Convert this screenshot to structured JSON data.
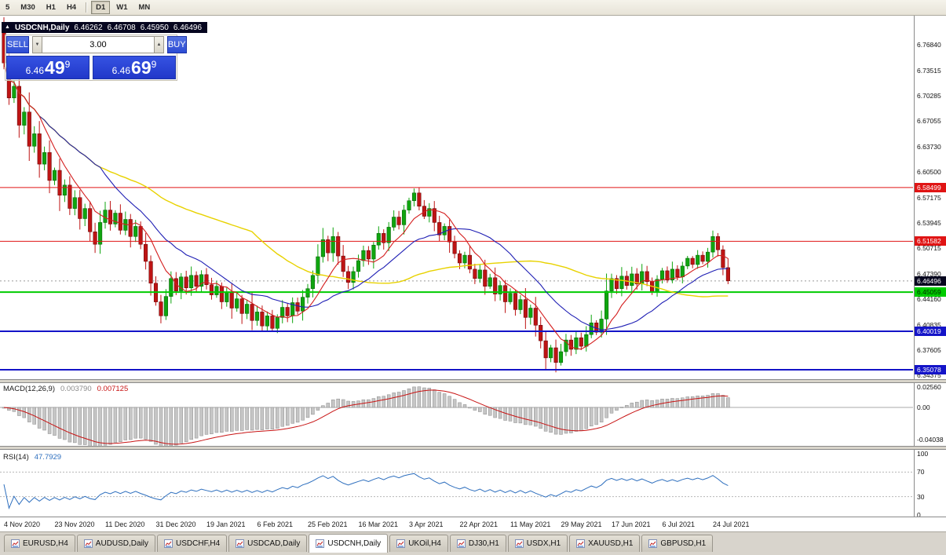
{
  "toolbar": {
    "timeframes": [
      "5",
      "M30",
      "H1",
      "H4",
      "D1",
      "W1",
      "MN"
    ],
    "active": "D1",
    "separator_before": "D1"
  },
  "symbol_header": {
    "collapse_icon": "▲",
    "title": "USDCNH,Daily",
    "open": "6.46262",
    "high": "6.46708",
    "low": "6.45950",
    "close": "6.46496"
  },
  "one_click": {
    "sell_label": "SELL",
    "buy_label": "BUY",
    "volume": "3.00",
    "spin_down_icon": "▼",
    "spin_up_icon": "▲",
    "bid": {
      "prefix": "6.46",
      "main": "49",
      "sup": "9"
    },
    "ask": {
      "prefix": "6.46",
      "main": "69",
      "sup": "9"
    }
  },
  "tabs": {
    "labels": [
      "EURUSD,H4",
      "AUDUSD,Daily",
      "USDCHF,H4",
      "USDCAD,Daily",
      "USDCNH,Daily",
      "UKOil,H4",
      "DJ30,H1",
      "USDX,H1",
      "XAUUSD,H1",
      "GBPUSD,H1"
    ],
    "active_index": 4
  },
  "chart_data": {
    "type": "candlestick",
    "symbol": "USDCNH",
    "timeframe": "Daily",
    "ohlc_display": {
      "open": 6.46262,
      "high": 6.46708,
      "low": 6.4595,
      "close": 6.46496
    },
    "current_price": 6.46496,
    "first_open": 6.792,
    "closes": [
      6.745,
      6.7,
      6.715,
      6.665,
      6.682,
      6.638,
      6.654,
      6.615,
      6.63,
      6.594,
      6.607,
      6.575,
      6.588,
      6.558,
      6.572,
      6.545,
      6.558,
      6.528,
      6.512,
      6.54,
      6.556,
      6.538,
      6.552,
      6.53,
      6.544,
      6.522,
      6.535,
      6.512,
      6.49,
      6.462,
      6.438,
      6.42,
      6.445,
      6.468,
      6.452,
      6.47,
      6.456,
      6.472,
      6.458,
      6.473,
      6.46,
      6.447,
      6.458,
      6.438,
      6.45,
      6.43,
      6.442,
      6.423,
      6.435,
      6.414,
      6.425,
      6.407,
      6.42,
      6.404,
      6.418,
      6.431,
      6.42,
      6.437,
      6.426,
      6.444,
      6.455,
      6.472,
      6.496,
      6.518,
      6.501,
      6.522,
      6.497,
      6.477,
      6.463,
      6.477,
      6.491,
      6.504,
      6.493,
      6.511,
      6.526,
      6.514,
      6.534,
      6.547,
      6.537,
      6.556,
      6.568,
      6.578,
      6.561,
      6.548,
      6.558,
      6.54,
      6.524,
      6.535,
      6.515,
      6.5,
      6.488,
      6.498,
      6.48,
      6.468,
      6.479,
      6.458,
      6.469,
      6.448,
      6.459,
      6.438,
      6.449,
      6.428,
      6.441,
      6.418,
      6.43,
      6.408,
      6.388,
      6.366,
      6.379,
      6.36,
      6.374,
      6.389,
      6.377,
      6.392,
      6.381,
      6.396,
      6.411,
      6.399,
      6.416,
      6.452,
      6.468,
      6.455,
      6.471,
      6.459,
      6.474,
      6.461,
      6.477,
      6.464,
      6.451,
      6.467,
      6.478,
      6.466,
      6.48,
      6.47,
      6.484,
      6.494,
      6.486,
      6.498,
      6.49,
      6.502,
      6.522,
      6.505,
      6.482,
      6.46496
    ],
    "date_labels": [
      "4 Nov 2020",
      "23 Nov 2020",
      "11 Dec 2020",
      "31 Dec 2020",
      "19 Jan 2021",
      "6 Feb 2021",
      "25 Feb 2021",
      "16 Mar 2021",
      "3 Apr 2021",
      "22 Apr 2021",
      "11 May 2021",
      "29 May 2021",
      "17 Jun 2021",
      "6 Jul 2021",
      "24 Jul 2021"
    ],
    "price_scale_labels": [
      {
        "t": "6.76840",
        "v": 6.7684
      },
      {
        "t": "6.73515",
        "v": 6.73515
      },
      {
        "t": "6.70285",
        "v": 6.70285
      },
      {
        "t": "6.67055",
        "v": 6.67055
      },
      {
        "t": "6.63730",
        "v": 6.6373
      },
      {
        "t": "6.60500",
        "v": 6.605
      },
      {
        "t": "6.57175",
        "v": 6.57175
      },
      {
        "t": "6.53945",
        "v": 6.53945
      },
      {
        "t": "6.50715",
        "v": 6.50715
      },
      {
        "t": "6.47390",
        "v": 6.4739
      },
      {
        "t": "6.44160",
        "v": 6.4416
      },
      {
        "t": "6.40835",
        "v": 6.40835
      },
      {
        "t": "6.37605",
        "v": 6.37605
      },
      {
        "t": "6.34375",
        "v": 6.34375
      }
    ],
    "levels": [
      {
        "t": "6.58499",
        "v": 6.58499,
        "color": "#E01414",
        "fg": "#FFFFFF",
        "width": 1
      },
      {
        "t": "6.51582",
        "v": 6.51582,
        "color": "#E01414",
        "fg": "#FFFFFF",
        "width": 1
      },
      {
        "t": "6.45059",
        "v": 6.45059,
        "color": "#00CC00",
        "fg": "#002800",
        "width": 2
      },
      {
        "t": "6.40019",
        "v": 6.40019,
        "color": "#1414C8",
        "fg": "#FFFFFF",
        "width": 2
      },
      {
        "t": "6.35078",
        "v": 6.35078,
        "color": "#1414C8",
        "fg": "#FFFFFF",
        "width": 2
      }
    ],
    "current_badge": {
      "t": "6.46496",
      "v": 6.46496,
      "bg": "#06061F",
      "fg": "#FFFFFF"
    },
    "candle_up": "#0FA50F",
    "candle_down": "#BE1414",
    "moving_averages": [
      {
        "period": 8,
        "color": "#D41E1E"
      },
      {
        "period": 20,
        "color": "#1E1EB4"
      },
      {
        "period": 50,
        "color": "#E8D200"
      }
    ],
    "macd": {
      "label_text": "MACD(12,26,9)",
      "fast": 12,
      "slow": 26,
      "signal": 9,
      "display_main": "0.003790",
      "display_signal": "0.007125",
      "scale_labels": [
        {
          "t": "0.02560",
          "v": 0.0256
        },
        {
          "t": "0.00",
          "v": 0
        },
        {
          "t": "-0.04038",
          "v": -0.04038
        }
      ],
      "hist_fill": "#C6C6C6",
      "hist_stroke": "#8A8A8A",
      "signal_color": "#C81414"
    },
    "rsi": {
      "label_text": "RSI(14)",
      "period": 14,
      "display_value": "47.7929",
      "scale_labels": [
        {
          "t": "100",
          "v": 100
        },
        {
          "t": "70",
          "v": 70
        },
        {
          "t": "30",
          "v": 30
        },
        {
          "t": "0",
          "v": 0
        }
      ],
      "levels": [
        70,
        30
      ],
      "color": "#2E6FBE"
    }
  }
}
